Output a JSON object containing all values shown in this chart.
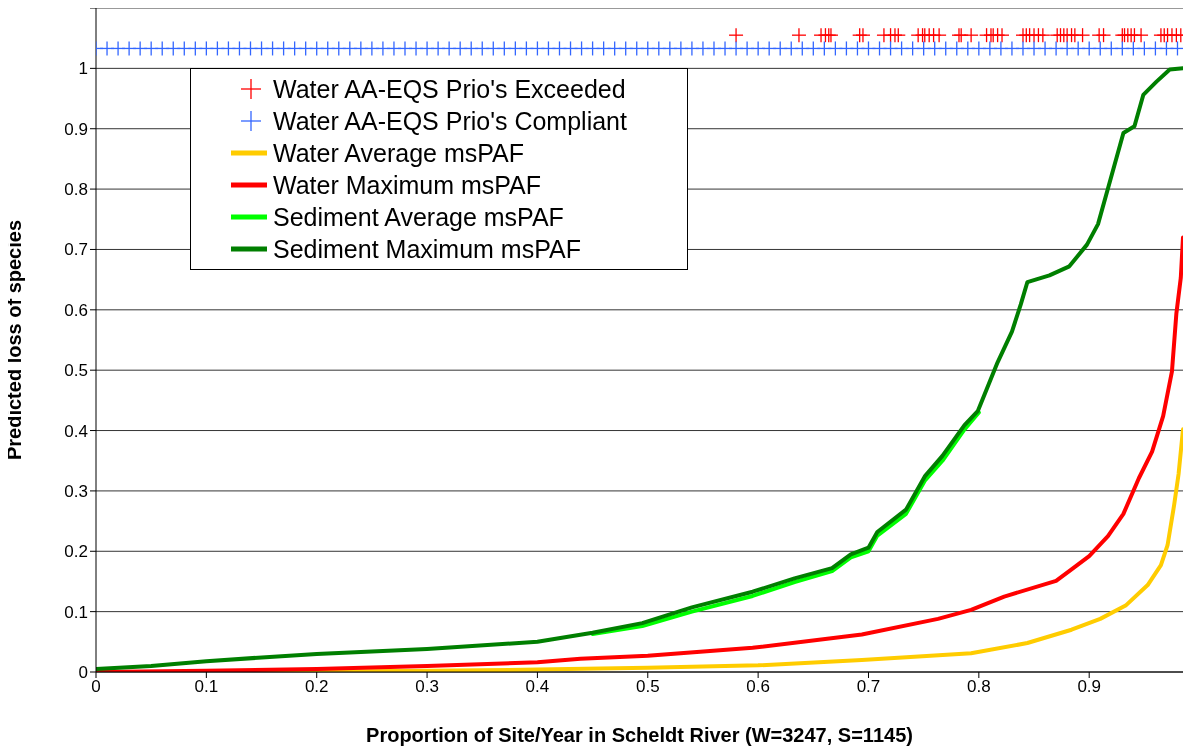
{
  "chart_data": {
    "type": "line",
    "xlabel": "Proportion of Site/Year in Scheldt River (W=3247, S=1145)",
    "ylabel": "Predicted loss of species",
    "xlim": [
      0,
      0.985
    ],
    "xticks": [
      0,
      0.1,
      0.2,
      0.3,
      0.4,
      0.5,
      0.6,
      0.7,
      0.8,
      0.9
    ],
    "ylim": [
      0,
      1.1
    ],
    "yticks": [
      0,
      0.1,
      0.2,
      0.3,
      0.4,
      0.5,
      0.6,
      0.7,
      0.8,
      0.9,
      1,
      {
        "value": 1.1,
        "label": null
      }
    ],
    "grid": "y",
    "legend": "top left",
    "marker": "none",
    "line_style": "solid",
    "series": [
      {
        "name": "Water AA-EQS Prio's Exceeded",
        "type": "scatter",
        "marker": "cross",
        "color": "#ff0000",
        "x": [
          0.58,
          0.637,
          0.657,
          0.661,
          0.664,
          0.666,
          0.692,
          0.695,
          0.714,
          0.72,
          0.724,
          0.727,
          0.745,
          0.749,
          0.751,
          0.755,
          0.759,
          0.764,
          0.782,
          0.784,
          0.793,
          0.807,
          0.811,
          0.813,
          0.817,
          0.821,
          0.84,
          0.843,
          0.846,
          0.85,
          0.854,
          0.858,
          0.871,
          0.874,
          0.877,
          0.88,
          0.884,
          0.887,
          0.894,
          0.909,
          0.913,
          0.93,
          0.932,
          0.935,
          0.938,
          0.941,
          0.947,
          0.965,
          0.968,
          0.971,
          0.975,
          0.979,
          0.983
        ],
        "values": [
          1.055,
          1.055,
          1.055,
          1.055,
          1.055,
          1.055,
          1.055,
          1.055,
          1.055,
          1.055,
          1.055,
          1.055,
          1.055,
          1.055,
          1.055,
          1.055,
          1.055,
          1.055,
          1.055,
          1.055,
          1.055,
          1.055,
          1.055,
          1.055,
          1.055,
          1.055,
          1.055,
          1.055,
          1.055,
          1.055,
          1.055,
          1.055,
          1.055,
          1.055,
          1.055,
          1.055,
          1.055,
          1.055,
          1.055,
          1.055,
          1.055,
          1.055,
          1.055,
          1.055,
          1.055,
          1.055,
          1.055,
          1.055,
          1.055,
          1.055,
          1.055,
          1.055,
          1.055
        ]
      },
      {
        "name": "Water AA-EQS Prio's Compliant",
        "type": "scatter",
        "marker": "cross",
        "color": "#3366ff",
        "x": [
          0,
          0.01,
          0.02,
          0.03,
          0.04,
          0.05,
          0.06,
          0.07,
          0.08,
          0.09,
          0.1,
          0.11,
          0.12,
          0.13,
          0.14,
          0.15,
          0.16,
          0.17,
          0.18,
          0.19,
          0.2,
          0.21,
          0.22,
          0.23,
          0.24,
          0.25,
          0.26,
          0.27,
          0.28,
          0.29,
          0.3,
          0.31,
          0.32,
          0.33,
          0.34,
          0.35,
          0.36,
          0.37,
          0.38,
          0.39,
          0.4,
          0.41,
          0.42,
          0.43,
          0.44,
          0.45,
          0.46,
          0.47,
          0.48,
          0.49,
          0.5,
          0.51,
          0.52,
          0.53,
          0.54,
          0.55,
          0.56,
          0.57,
          0.58,
          0.59,
          0.6,
          0.61,
          0.62,
          0.63,
          0.64,
          0.65,
          0.66,
          0.67,
          0.68,
          0.69,
          0.7,
          0.71,
          0.72,
          0.73,
          0.74,
          0.75,
          0.76,
          0.77,
          0.78,
          0.79,
          0.8,
          0.81,
          0.82,
          0.83,
          0.84,
          0.85,
          0.86,
          0.87,
          0.88,
          0.89,
          0.9,
          0.91,
          0.92,
          0.93,
          0.94,
          0.95,
          0.96,
          0.97,
          0.98
        ],
        "values": [
          1.033,
          1.033,
          1.033,
          1.033,
          1.033,
          1.033,
          1.033,
          1.033,
          1.033,
          1.033,
          1.033,
          1.033,
          1.033,
          1.033,
          1.033,
          1.033,
          1.033,
          1.033,
          1.033,
          1.033,
          1.033,
          1.033,
          1.033,
          1.033,
          1.033,
          1.033,
          1.033,
          1.033,
          1.033,
          1.033,
          1.033,
          1.033,
          1.033,
          1.033,
          1.033,
          1.033,
          1.033,
          1.033,
          1.033,
          1.033,
          1.033,
          1.033,
          1.033,
          1.033,
          1.033,
          1.033,
          1.033,
          1.033,
          1.033,
          1.033,
          1.033,
          1.033,
          1.033,
          1.033,
          1.033,
          1.033,
          1.033,
          1.033,
          1.033,
          1.033,
          1.033,
          1.033,
          1.033,
          1.033,
          1.033,
          1.033,
          1.033,
          1.033,
          1.033,
          1.033,
          1.033,
          1.033,
          1.033,
          1.033,
          1.033,
          1.033,
          1.033,
          1.033,
          1.033,
          1.033,
          1.033,
          1.033,
          1.033,
          1.033,
          1.033,
          1.033,
          1.033,
          1.033,
          1.033,
          1.033,
          1.033,
          1.033,
          1.033,
          1.033,
          1.033,
          1.033,
          1.033,
          1.033,
          1.033
        ]
      },
      {
        "name": "Water Average msPAF",
        "color": "#ffcc00",
        "x": [
          0,
          0.15,
          0.3,
          0.4,
          0.5,
          0.6,
          0.694,
          0.793,
          0.844,
          0.884,
          0.91,
          0.933,
          0.953,
          0.965,
          0.971,
          0.977,
          0.981,
          0.985
        ],
        "values": [
          0,
          0,
          0.002,
          0.004,
          0.007,
          0.011,
          0.02,
          0.031,
          0.048,
          0.07,
          0.088,
          0.11,
          0.144,
          0.177,
          0.21,
          0.277,
          0.328,
          0.402
        ]
      },
      {
        "name": "Water Maximum msPAF",
        "color": "#ff0000",
        "x": [
          0,
          0.1,
          0.2,
          0.3,
          0.4,
          0.439,
          0.5,
          0.595,
          0.694,
          0.763,
          0.793,
          0.823,
          0.87,
          0.884,
          0.9,
          0.917,
          0.931,
          0.945,
          0.957,
          0.967,
          0.975,
          0.979,
          0.983,
          0.985
        ],
        "values": [
          0,
          0.002,
          0.005,
          0.01,
          0.016,
          0.022,
          0.027,
          0.04,
          0.062,
          0.088,
          0.103,
          0.125,
          0.151,
          0.17,
          0.192,
          0.225,
          0.262,
          0.321,
          0.365,
          0.424,
          0.498,
          0.594,
          0.653,
          0.72
        ]
      },
      {
        "name": "Sediment Average msPAF",
        "color": "#00ff00",
        "x": [
          0.45,
          0.495,
          0.54,
          0.595,
          0.633,
          0.667,
          0.684,
          0.7,
          0.708,
          0.734,
          0.751,
          0.767,
          0.787,
          0.8
        ],
        "values": [
          0.063,
          0.076,
          0.1,
          0.126,
          0.149,
          0.167,
          0.19,
          0.2,
          0.226,
          0.262,
          0.317,
          0.35,
          0.402,
          0.43
        ]
      },
      {
        "name": "Sediment Maximum msPAF",
        "color": "#007f00",
        "x": [
          0,
          0.05,
          0.1,
          0.2,
          0.3,
          0.4,
          0.45,
          0.495,
          0.54,
          0.595,
          0.633,
          0.667,
          0.684,
          0.7,
          0.708,
          0.734,
          0.751,
          0.767,
          0.787,
          0.799,
          0.807,
          0.817,
          0.83,
          0.838,
          0.844,
          0.864,
          0.882,
          0.898,
          0.908,
          0.917,
          0.931,
          0.941,
          0.949,
          0.961,
          0.973,
          0.985
        ],
        "values": [
          0.005,
          0.01,
          0.018,
          0.03,
          0.038,
          0.05,
          0.065,
          0.081,
          0.107,
          0.133,
          0.155,
          0.172,
          0.195,
          0.206,
          0.232,
          0.269,
          0.324,
          0.358,
          0.409,
          0.432,
          0.468,
          0.513,
          0.564,
          0.609,
          0.646,
          0.657,
          0.672,
          0.708,
          0.742,
          0.801,
          0.893,
          0.904,
          0.956,
          0.978,
          0.998,
          1.0
        ]
      }
    ]
  }
}
